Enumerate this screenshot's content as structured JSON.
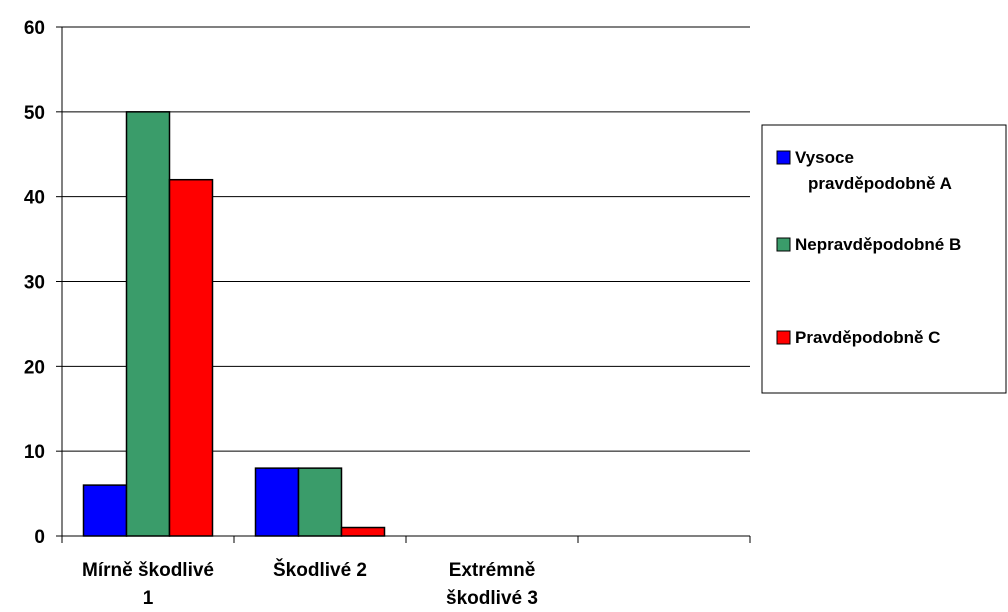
{
  "chart_data": {
    "type": "bar",
    "categories": [
      [
        "Mírně škodlivé",
        "1"
      ],
      [
        "Škodlivé 2"
      ],
      [
        "Extrémně",
        "škodlivé 3"
      ]
    ],
    "slots": 4,
    "series": [
      {
        "name": [
          "Vysoce",
          "pravděpodobně A"
        ],
        "color": "#0000ff",
        "values": [
          6,
          8,
          0
        ]
      },
      {
        "name": [
          "Nepravděpodobné B"
        ],
        "color": "#3a9c6a",
        "values": [
          50,
          8,
          0
        ]
      },
      {
        "name": [
          "Pravděpodobně C"
        ],
        "color": "#ff0000",
        "values": [
          42,
          1,
          0
        ]
      }
    ],
    "ylim": [
      0,
      60
    ],
    "yticks": [
      0,
      10,
      20,
      30,
      40,
      50,
      60
    ],
    "grid": true,
    "legend_position": "right",
    "title": "",
    "xlabel": "",
    "ylabel": ""
  }
}
